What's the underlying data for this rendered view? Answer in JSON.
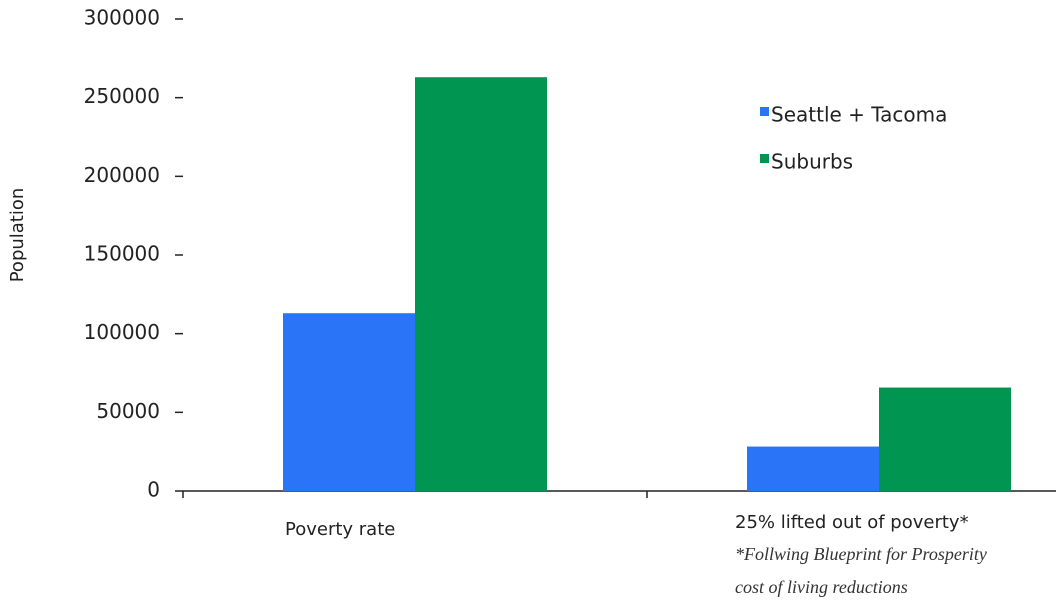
{
  "chart_data": {
    "type": "bar",
    "y_label": "Population",
    "categories": [
      "Poverty rate",
      "25% lifted out of poverty*"
    ],
    "series": [
      {
        "name": "Seattle + Tacoma",
        "color": "#2a74f7",
        "values": [
          113000,
          28250
        ]
      },
      {
        "name": "Suburbs",
        "color": "#009651",
        "values": [
          263000,
          65750
        ]
      }
    ],
    "ylim": [
      0,
      300000
    ],
    "yticks": [
      0,
      50000,
      100000,
      150000,
      200000,
      250000,
      300000
    ],
    "annotations": [
      "*Follwing Blueprint for Prosperity",
      "cost of living reductions"
    ],
    "grid": false,
    "legend": "upper-right"
  }
}
